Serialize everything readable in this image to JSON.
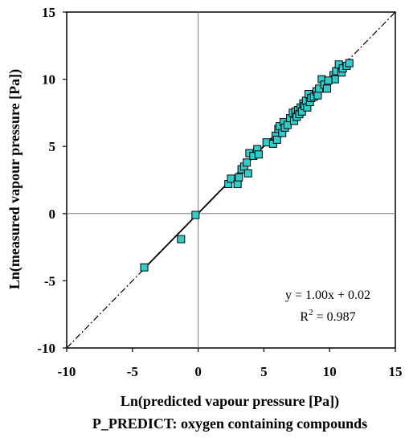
{
  "chart_data": {
    "type": "scatter",
    "xlabel": "Ln(predicted vapour pressure [Pa])",
    "subtitle": "P_PREDICT: oxygen containing compounds",
    "ylabel": "Ln(measured vapour pressure [Pa])",
    "xlim": [
      -10,
      15
    ],
    "ylim": [
      -10,
      15
    ],
    "xticks": [
      "-10",
      "-5",
      "0",
      "5",
      "10",
      "15"
    ],
    "yticks": [
      "-10",
      "-5",
      "0",
      "5",
      "10",
      "15"
    ],
    "fit_line": {
      "slope": 1.0,
      "intercept": 0.02
    },
    "reference_line": {
      "slope": 1,
      "intercept": 0,
      "style": "dash-dot"
    },
    "annotation": {
      "equation": "y = 1.00x + 0.02",
      "r2_prefix": "R",
      "r2_exp": "2",
      "r2_value": " = 0.987"
    },
    "marker_color": "#33cccc",
    "points": [
      [
        -4.1,
        -4.0
      ],
      [
        -1.3,
        -1.9
      ],
      [
        -0.2,
        -0.1
      ],
      [
        2.3,
        2.2
      ],
      [
        2.5,
        2.6
      ],
      [
        3.0,
        2.2
      ],
      [
        3.1,
        2.7
      ],
      [
        3.3,
        3.3
      ],
      [
        3.5,
        3.5
      ],
      [
        3.8,
        3.0
      ],
      [
        3.7,
        3.8
      ],
      [
        3.9,
        4.5
      ],
      [
        4.2,
        4.3
      ],
      [
        4.5,
        4.8
      ],
      [
        4.6,
        4.4
      ],
      [
        5.2,
        5.3
      ],
      [
        5.7,
        5.2
      ],
      [
        5.9,
        5.8
      ],
      [
        6.0,
        5.5
      ],
      [
        6.1,
        6.3
      ],
      [
        6.2,
        6.5
      ],
      [
        6.4,
        6.0
      ],
      [
        6.5,
        6.8
      ],
      [
        6.6,
        6.4
      ],
      [
        6.8,
        6.6
      ],
      [
        7.0,
        7.1
      ],
      [
        7.2,
        7.5
      ],
      [
        7.3,
        6.9
      ],
      [
        7.4,
        7.6
      ],
      [
        7.5,
        7.2
      ],
      [
        7.6,
        7.7
      ],
      [
        7.7,
        7.4
      ],
      [
        7.8,
        7.9
      ],
      [
        7.9,
        7.6
      ],
      [
        8.0,
        8.2
      ],
      [
        8.1,
        8.0
      ],
      [
        8.2,
        8.4
      ],
      [
        8.3,
        7.9
      ],
      [
        8.4,
        8.9
      ],
      [
        8.5,
        8.3
      ],
      [
        8.6,
        8.6
      ],
      [
        8.8,
        8.7
      ],
      [
        9.0,
        9.1
      ],
      [
        9.1,
        8.8
      ],
      [
        9.2,
        9.3
      ],
      [
        9.4,
        10.0
      ],
      [
        9.6,
        9.6
      ],
      [
        9.8,
        9.3
      ],
      [
        10.3,
        10.3
      ],
      [
        10.5,
        10.6
      ],
      [
        10.7,
        11.1
      ],
      [
        10.9,
        10.5
      ],
      [
        11.0,
        10.8
      ],
      [
        11.3,
        11.0
      ],
      [
        11.5,
        11.2
      ],
      [
        10.4,
        10.0
      ],
      [
        9.9,
        9.9
      ]
    ]
  }
}
